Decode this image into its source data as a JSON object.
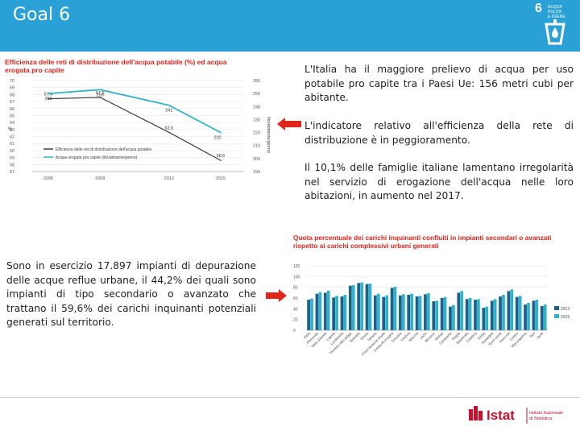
{
  "header": {
    "title": "Goal 6",
    "goal_number": "6",
    "goal_label_line1": "ACQUA PULITA",
    "goal_label_line2": "E IGIENE",
    "bg_color": "#2aa1d6"
  },
  "chart1": {
    "title_line1": "Efficienza delle reti di distribuzione dell'acqua potabile (%) ed acqua",
    "title_line2": "erogata pro capite"
  },
  "chart2": {
    "title_line1": "Quota percentuale dei carichi inquinanti confluiti in impianti secondari o avanzati",
    "title_line2": "rispetto ai carichi complessivi urbani generati"
  },
  "text": {
    "p1": "L'Italia ha il maggiore prelievo di acqua per uso potabile pro capite tra i Paesi Ue: 156 metri cubi per abitante.",
    "p2": "L'indicatore relativo all'efficienza della rete di distribuzione è in peggioramento.",
    "p3": "Il 10,1% delle famiglie italiane lamentano irregolarità nel servizio di erogazione dell'acqua nelle loro abitazioni, in aumento nel 2017.",
    "p4": "Sono in esercizio 17.897 impianti di depurazione delle acque reflue urbane, il 44,2% dei quali sono impianti di tipo secondario o avanzato che trattano il 59,6% dei carichi inquinanti potenziali generati sul territorio."
  },
  "footer": {
    "logo_text": "Istat",
    "logo_sub1": "Istituto Nazionale",
    "logo_sub2": "di Statistica"
  },
  "chart_data": [
    {
      "type": "line",
      "title": "Efficienza delle reti di distribuzione dell'acqua potabile (%) ed acqua erogata pro capite",
      "x": [
        2005,
        2008,
        2012,
        2015
      ],
      "xticks": [
        "2005",
        "2008",
        "2012",
        "2015"
      ],
      "ylabel_left": "%",
      "ylabel_right": "litri/abitante/giorno",
      "ylim_left": [
        57,
        70
      ],
      "yticks_left": [
        "70",
        "69",
        "68",
        "67",
        "66",
        "65",
        "64",
        "63",
        "62",
        "61",
        "60",
        "59",
        "58",
        "57"
      ],
      "ylim_right": [
        190,
        260
      ],
      "yticks_right": [
        "260",
        "250",
        "240",
        "230",
        "220",
        "210",
        "200",
        "190"
      ],
      "series": [
        {
          "name": "Efficienza delle reti di distribuzione dell'acqua potabile",
          "axis": "left",
          "values": [
            67.4,
            67.6,
            62.6,
            58.6
          ],
          "labels": [
            "67,4",
            "67,6",
            "62,6",
            "58,6"
          ],
          "color": "#404040"
        },
        {
          "name": "Acqua erogata pro capite (litri/abitante/giorno)",
          "axis": "right",
          "values": [
            250,
            253,
            241,
            220
          ],
          "labels": [
            "250",
            "253",
            "241",
            "220"
          ],
          "color": "#2fb3c9"
        }
      ],
      "legend_position": "bottom-center"
    },
    {
      "type": "bar",
      "title": "Quota percentuale dei carichi inquinanti confluiti in impianti secondari o avanzati rispetto ai carichi complessivi urbani generati",
      "yticks": [
        "120",
        "100",
        "80",
        "60",
        "40",
        "20",
        "0"
      ],
      "ylim": [
        0,
        120
      ],
      "categories": [
        "Italia",
        "Piemonte",
        "Valle d'Aosta",
        "Liguria",
        "Lombardia",
        "Trentino-Alto Adige",
        "Bolzano",
        "Trento",
        "Veneto",
        "Friuli-Venezia Giulia",
        "Emilia-Romagna",
        "Toscana",
        "Umbria",
        "Marche",
        "Lazio",
        "Abruzzo",
        "Molise",
        "Campania",
        "Puglia",
        "Basilicata",
        "Calabria",
        "Sicilia",
        "Sardegna",
        "Nord-ovest",
        "Nord-est",
        "Centro",
        "Mezzogiorno",
        "Sud",
        "Isole"
      ],
      "series": [
        {
          "name": "2012",
          "color": "#1f5f8b",
          "values": [
            57,
            68,
            70,
            61,
            63,
            83,
            88,
            86,
            65,
            62,
            79,
            65,
            66,
            63,
            67,
            54,
            60,
            44,
            70,
            58,
            57,
            42,
            55,
            63,
            73,
            62,
            48,
            55,
            45
          ]
        },
        {
          "name": "2015",
          "color": "#2fb3c9",
          "values": [
            59,
            71,
            74,
            64,
            66,
            84,
            89,
            87,
            68,
            65,
            81,
            67,
            68,
            64,
            69,
            55,
            62,
            47,
            73,
            60,
            58,
            44,
            58,
            66,
            76,
            64,
            51,
            57,
            48
          ]
        }
      ],
      "legend_position": "right"
    }
  ]
}
